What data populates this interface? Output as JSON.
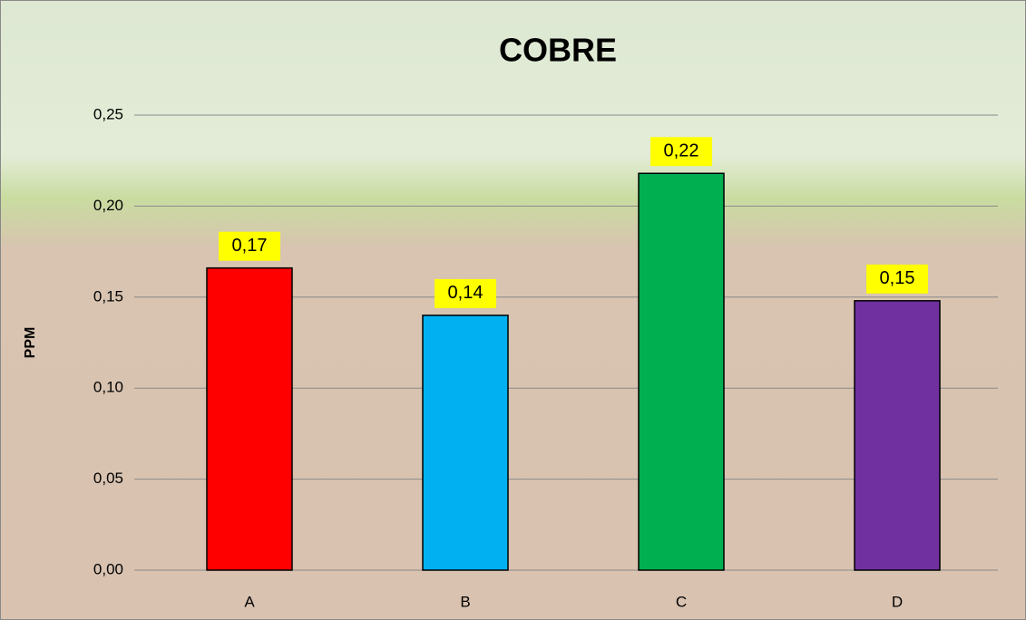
{
  "chart_data": {
    "type": "bar",
    "title": "COBRE",
    "y_label": "PPM",
    "categories": [
      "A",
      "B",
      "C",
      "D"
    ],
    "values": [
      0.166,
      0.14,
      0.218,
      0.148
    ],
    "value_labels": [
      "0,17",
      "0,14",
      "0,22",
      "0,15"
    ],
    "colors": [
      "#ff0000",
      "#00b0f0",
      "#00b050",
      "#7030a0"
    ],
    "ylim": [
      0,
      0.25
    ],
    "yticks": [
      {
        "value": 0,
        "label": "0,00"
      },
      {
        "value": 0.05,
        "label": "0,05"
      },
      {
        "value": 0.1,
        "label": "0,10"
      },
      {
        "value": 0.15,
        "label": "0,15"
      },
      {
        "value": 0.2,
        "label": "0,20"
      },
      {
        "value": 0.25,
        "label": "0,25"
      }
    ],
    "grid": true
  }
}
